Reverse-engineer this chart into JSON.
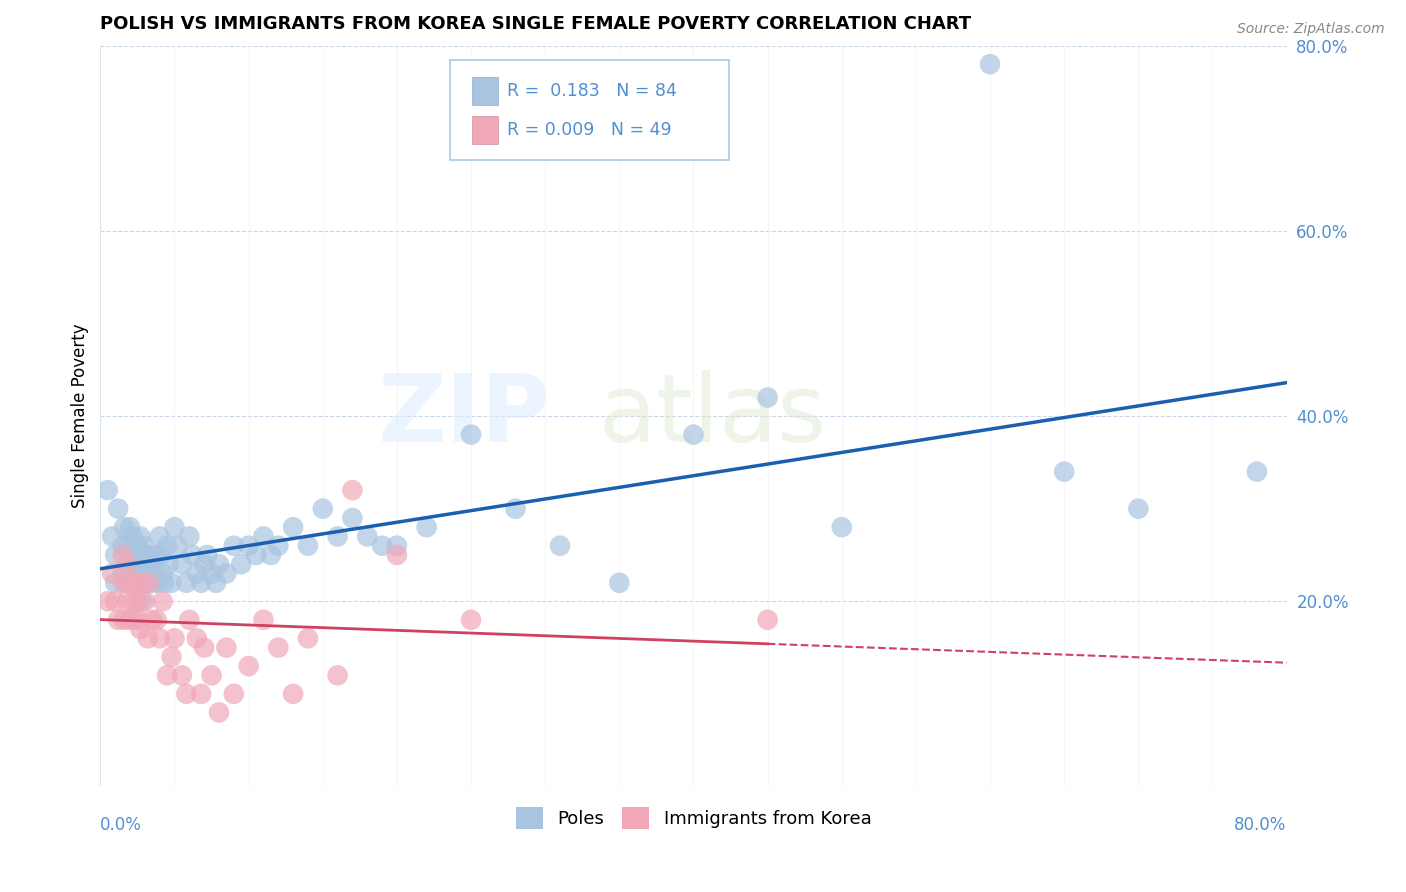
{
  "title": "POLISH VS IMMIGRANTS FROM KOREA SINGLE FEMALE POVERTY CORRELATION CHART",
  "source": "Source: ZipAtlas.com",
  "ylabel": "Single Female Poverty",
  "legend_poles_label": "Poles",
  "legend_korea_label": "Immigrants from Korea",
  "poles_R": "0.183",
  "poles_N": "84",
  "korea_R": "0.009",
  "korea_N": "49",
  "poles_color": "#a8c4e0",
  "poles_line_color": "#1a5fb0",
  "korea_color": "#f0a8b8",
  "korea_line_color": "#d04060",
  "background_color": "#ffffff",
  "grid_color": "#c8d8e8",
  "tick_color": "#5090d0",
  "xlim": [
    0.0,
    0.8
  ],
  "ylim": [
    0.0,
    0.8
  ],
  "poles_x": [
    0.005,
    0.008,
    0.01,
    0.01,
    0.012,
    0.015,
    0.015,
    0.016,
    0.017,
    0.018,
    0.02,
    0.02,
    0.021,
    0.022,
    0.022,
    0.023,
    0.024,
    0.025,
    0.025,
    0.026,
    0.027,
    0.027,
    0.028,
    0.028,
    0.029,
    0.03,
    0.03,
    0.031,
    0.032,
    0.033,
    0.034,
    0.035,
    0.035,
    0.036,
    0.037,
    0.038,
    0.04,
    0.041,
    0.042,
    0.043,
    0.045,
    0.046,
    0.048,
    0.05,
    0.052,
    0.055,
    0.058,
    0.06,
    0.062,
    0.065,
    0.068,
    0.07,
    0.072,
    0.075,
    0.078,
    0.08,
    0.085,
    0.09,
    0.095,
    0.1,
    0.105,
    0.11,
    0.115,
    0.12,
    0.13,
    0.14,
    0.15,
    0.16,
    0.17,
    0.18,
    0.19,
    0.2,
    0.22,
    0.25,
    0.28,
    0.31,
    0.35,
    0.4,
    0.45,
    0.5,
    0.6,
    0.65,
    0.7,
    0.78
  ],
  "poles_y": [
    0.32,
    0.27,
    0.25,
    0.22,
    0.3,
    0.26,
    0.23,
    0.28,
    0.22,
    0.26,
    0.28,
    0.25,
    0.23,
    0.27,
    0.24,
    0.22,
    0.26,
    0.24,
    0.22,
    0.25,
    0.27,
    0.24,
    0.22,
    0.2,
    0.26,
    0.25,
    0.23,
    0.22,
    0.24,
    0.23,
    0.25,
    0.24,
    0.22,
    0.23,
    0.25,
    0.22,
    0.27,
    0.25,
    0.23,
    0.22,
    0.26,
    0.24,
    0.22,
    0.28,
    0.26,
    0.24,
    0.22,
    0.27,
    0.25,
    0.23,
    0.22,
    0.24,
    0.25,
    0.23,
    0.22,
    0.24,
    0.23,
    0.26,
    0.24,
    0.26,
    0.25,
    0.27,
    0.25,
    0.26,
    0.28,
    0.26,
    0.3,
    0.27,
    0.29,
    0.27,
    0.26,
    0.26,
    0.28,
    0.38,
    0.3,
    0.26,
    0.22,
    0.38,
    0.42,
    0.28,
    0.78,
    0.34,
    0.3,
    0.34
  ],
  "korea_x": [
    0.005,
    0.008,
    0.01,
    0.012,
    0.015,
    0.015,
    0.016,
    0.018,
    0.018,
    0.02,
    0.02,
    0.021,
    0.022,
    0.023,
    0.024,
    0.025,
    0.026,
    0.027,
    0.028,
    0.03,
    0.032,
    0.033,
    0.035,
    0.038,
    0.04,
    0.042,
    0.045,
    0.048,
    0.05,
    0.055,
    0.058,
    0.06,
    0.065,
    0.068,
    0.07,
    0.075,
    0.08,
    0.085,
    0.09,
    0.1,
    0.11,
    0.12,
    0.13,
    0.14,
    0.16,
    0.17,
    0.2,
    0.25,
    0.45
  ],
  "korea_y": [
    0.2,
    0.23,
    0.2,
    0.18,
    0.25,
    0.22,
    0.18,
    0.24,
    0.2,
    0.22,
    0.18,
    0.22,
    0.2,
    0.18,
    0.22,
    0.2,
    0.18,
    0.17,
    0.22,
    0.2,
    0.16,
    0.22,
    0.18,
    0.18,
    0.16,
    0.2,
    0.12,
    0.14,
    0.16,
    0.12,
    0.1,
    0.18,
    0.16,
    0.1,
    0.15,
    0.12,
    0.08,
    0.15,
    0.1,
    0.13,
    0.18,
    0.15,
    0.1,
    0.16,
    0.12,
    0.32,
    0.25,
    0.18,
    0.18
  ]
}
